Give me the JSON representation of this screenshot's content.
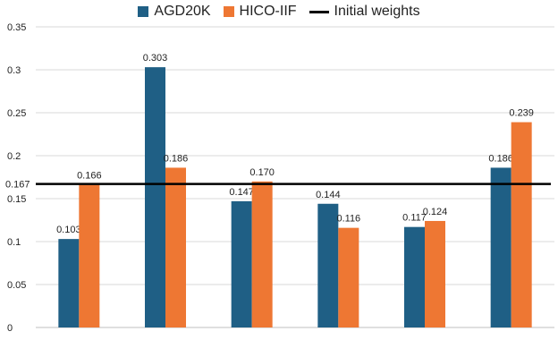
{
  "chart_data": {
    "type": "bar",
    "categories": [
      "",
      "",
      "",
      "",
      "",
      ""
    ],
    "series": [
      {
        "name": "AGD20K",
        "color": "#1f5f85",
        "values": [
          0.103,
          0.303,
          0.147,
          0.144,
          0.117,
          0.186
        ],
        "labels": [
          "0.103",
          "0.303",
          "0.147",
          "0.144",
          "0.117",
          "0.186"
        ]
      },
      {
        "name": "HICO-IIF",
        "color": "#ee7733",
        "values": [
          0.166,
          0.186,
          0.17,
          0.116,
          0.124,
          0.239
        ],
        "labels": [
          "0.166",
          "0.186",
          "0.170",
          "0.116",
          "0.124",
          "0.239"
        ]
      }
    ],
    "reference_line": {
      "name": "Initial weights",
      "value": 0.167,
      "label": "0.167",
      "color": "#000000"
    },
    "ylim": [
      0,
      0.35
    ],
    "yticks": [
      0,
      0.05,
      0.1,
      0.15,
      0.2,
      0.25,
      0.3,
      0.35
    ],
    "ytick_labels": [
      "0",
      "0.05",
      "0.1",
      "0.15",
      "0.2",
      "0.25",
      "0.3",
      "0.35"
    ],
    "grid": true,
    "legend_position": "top-center"
  }
}
